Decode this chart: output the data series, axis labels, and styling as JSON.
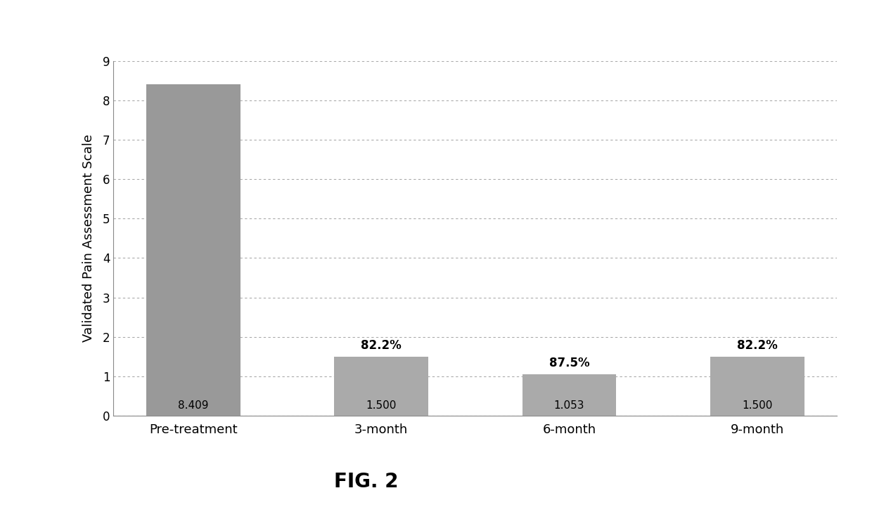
{
  "categories": [
    "Pre-treatment",
    "3-month",
    "6-month",
    "9-month"
  ],
  "values": [
    8.409,
    1.5,
    1.053,
    1.5
  ],
  "bar_labels": [
    "8.409",
    "1.500",
    "1.053",
    "1.500"
  ],
  "percent_labels": [
    "",
    "82.2%",
    "87.5%",
    "82.2%"
  ],
  "bar_color": "#999999",
  "bar_color_small": "#aaaaaa",
  "ylabel": "Validated Pain Assessment Scale",
  "ylim": [
    0,
    9
  ],
  "yticks": [
    0,
    1,
    2,
    3,
    4,
    5,
    6,
    7,
    8,
    9
  ],
  "figure_caption": "FIG. 2",
  "background_color": "#ffffff",
  "plot_bg_color": "#ffffff",
  "grid_color": "#aaaaaa",
  "value_label_fontsize": 11,
  "pct_label_fontsize": 12,
  "ylabel_fontsize": 13,
  "xtick_fontsize": 13,
  "ytick_fontsize": 12,
  "caption_fontsize": 20,
  "bar_width": 0.5
}
